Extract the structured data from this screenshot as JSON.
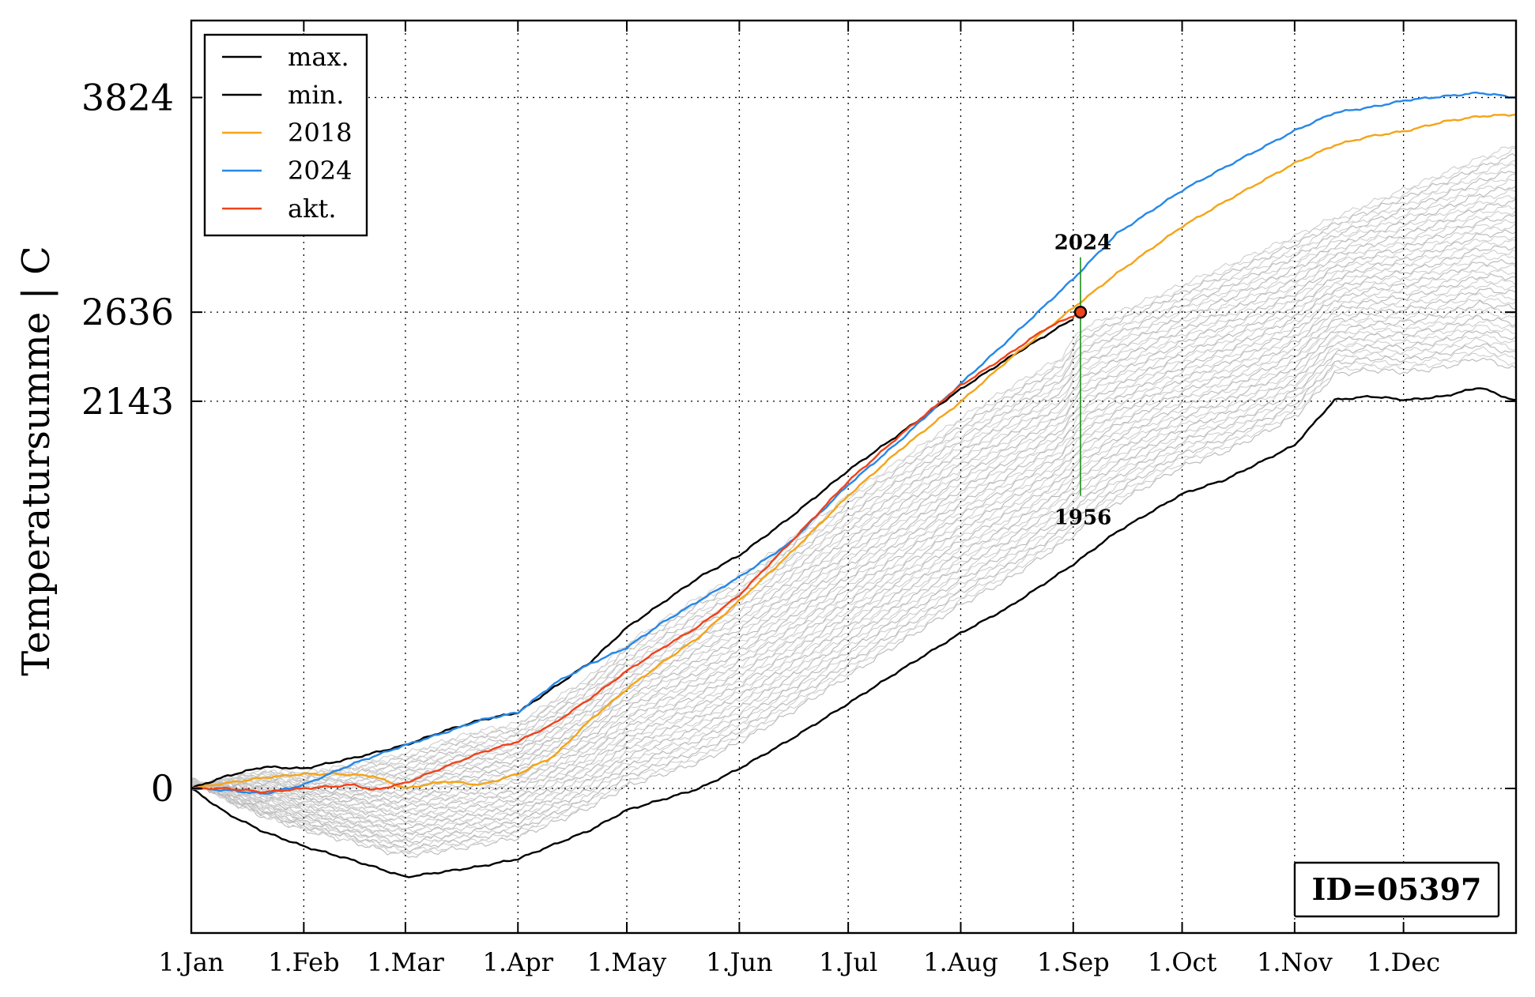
{
  "chart_data": {
    "type": "line",
    "ylabel": "Temperatursumme | C",
    "xlabel": "",
    "xlim": [
      0,
      365
    ],
    "ylim": [
      -800,
      4250
    ],
    "grid": true,
    "x_ticks": [
      {
        "label": "1.Jan",
        "day": 0
      },
      {
        "label": "1.Feb",
        "day": 31
      },
      {
        "label": "1.Mar",
        "day": 59
      },
      {
        "label": "1.Apr",
        "day": 90
      },
      {
        "label": "1.May",
        "day": 120
      },
      {
        "label": "1.Jun",
        "day": 151
      },
      {
        "label": "1.Jul",
        "day": 181
      },
      {
        "label": "1.Aug",
        "day": 212
      },
      {
        "label": "1.Sep",
        "day": 243
      },
      {
        "label": "1.Oct",
        "day": 273
      },
      {
        "label": "1.Nov",
        "day": 304
      },
      {
        "label": "1.Dec",
        "day": 334
      }
    ],
    "y_ticks": [
      {
        "label": "0",
        "value": 0
      },
      {
        "label": "2143",
        "value": 2143
      },
      {
        "label": "2636",
        "value": 2636
      },
      {
        "label": "3824",
        "value": 3824
      }
    ],
    "legend": {
      "position": "top-left",
      "entries": [
        {
          "label": "max.",
          "color": "#000000"
        },
        {
          "label": "min.",
          "color": "#000000"
        },
        {
          "label": "2018",
          "color": "#f5a417"
        },
        {
          "label": "2024",
          "color": "#2688e8"
        },
        {
          "label": "akt.",
          "color": "#f0431b"
        }
      ]
    },
    "series": [
      {
        "key": "max",
        "color": "#000000",
        "width": 2.4,
        "x": [
          0,
          10,
          20,
          31,
          45,
          59,
          70,
          80,
          90,
          100,
          110,
          120,
          130,
          140,
          151,
          165,
          181,
          195,
          212,
          225,
          243
        ],
        "y": [
          0,
          70,
          120,
          110,
          170,
          240,
          320,
          380,
          420,
          560,
          700,
          890,
          1030,
          1170,
          1290,
          1500,
          1760,
          1960,
          2210,
          2380,
          2600
        ]
      },
      {
        "key": "min",
        "color": "#000000",
        "width": 2.4,
        "x": [
          0,
          10,
          20,
          31,
          45,
          59,
          70,
          80,
          90,
          100,
          110,
          120,
          130,
          140,
          151,
          165,
          181,
          195,
          212,
          225,
          243,
          255,
          273,
          285,
          304,
          315,
          325,
          335,
          345,
          355,
          365
        ],
        "y": [
          0,
          -140,
          -240,
          -320,
          -400,
          -490,
          -460,
          -430,
          -390,
          -310,
          -230,
          -120,
          -60,
          0,
          110,
          270,
          470,
          650,
          860,
          1000,
          1240,
          1420,
          1630,
          1710,
          1900,
          2150,
          2170,
          2150,
          2170,
          2220,
          2143
        ]
      },
      {
        "key": "y2018",
        "color": "#f5a417",
        "width": 2.4,
        "x": [
          0,
          10,
          20,
          31,
          40,
          50,
          59,
          70,
          80,
          90,
          100,
          110,
          120,
          130,
          140,
          151,
          165,
          181,
          195,
          212,
          225,
          243,
          255,
          273,
          285,
          304,
          315,
          325,
          335,
          345,
          355,
          365
        ],
        "y": [
          0,
          30,
          60,
          80,
          80,
          70,
          0,
          40,
          20,
          80,
          180,
          380,
          550,
          700,
          840,
          1040,
          1300,
          1620,
          1870,
          2140,
          2370,
          2660,
          2850,
          3110,
          3250,
          3460,
          3560,
          3610,
          3640,
          3690,
          3720,
          3730
        ]
      },
      {
        "key": "y2024",
        "color": "#2688e8",
        "width": 2.4,
        "x": [
          0,
          10,
          20,
          31,
          45,
          59,
          70,
          80,
          90,
          100,
          110,
          120,
          130,
          140,
          151,
          165,
          181,
          195,
          212,
          225,
          243,
          255,
          273,
          285,
          304,
          315,
          325,
          335,
          345,
          355,
          365
        ],
        "y": [
          0,
          -10,
          -30,
          20,
          140,
          240,
          310,
          380,
          420,
          580,
          690,
          780,
          920,
          1040,
          1170,
          1360,
          1680,
          1920,
          2240,
          2480,
          2820,
          3070,
          3310,
          3440,
          3640,
          3740,
          3770,
          3810,
          3830,
          3850,
          3824
        ]
      },
      {
        "key": "akt",
        "color": "#f0431b",
        "width": 2.4,
        "x": [
          0,
          10,
          20,
          31,
          45,
          50,
          59,
          70,
          80,
          90,
          100,
          110,
          120,
          130,
          140,
          151,
          165,
          181,
          195,
          212,
          225,
          235,
          245
        ],
        "y": [
          0,
          0,
          -20,
          0,
          20,
          -10,
          30,
          120,
          200,
          260,
          360,
          500,
          650,
          780,
          900,
          1070,
          1360,
          1700,
          1950,
          2230,
          2400,
          2540,
          2636
        ]
      }
    ],
    "marker": {
      "x": 245,
      "y": 2636,
      "color": "#f0431b"
    },
    "range_line": {
      "x": 245,
      "top": 2940,
      "bottom": 1620,
      "color": "#1a8f1a",
      "top_label": "2024",
      "bottom_label": "1956"
    },
    "id_box": "ID=05397"
  }
}
